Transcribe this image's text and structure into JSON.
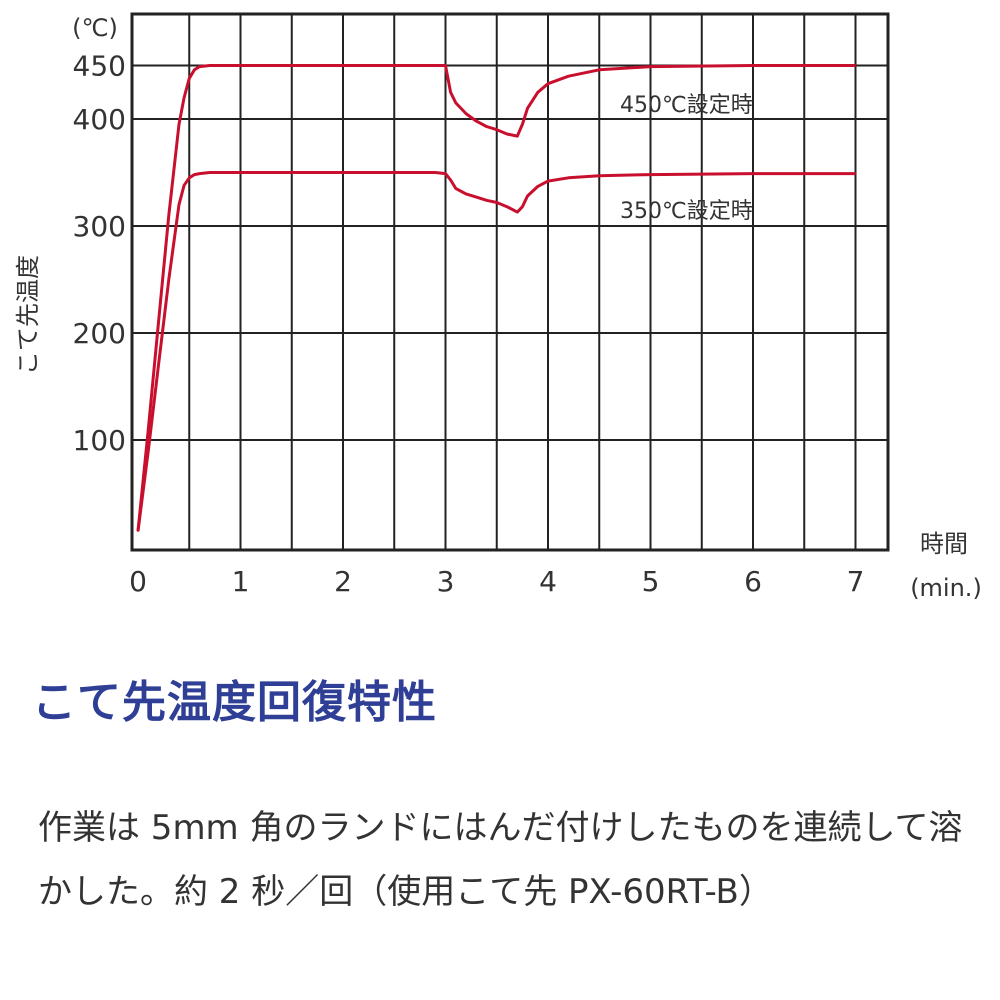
{
  "chart_data": {
    "type": "line",
    "y_unit": "(℃)",
    "ylabel": "こて先温度",
    "xlabel": "時間",
    "x_unit": "(min.)",
    "x_ticks": [
      "0",
      "1",
      "2",
      "3",
      "4",
      "5",
      "6",
      "7"
    ],
    "y_ticks": [
      "100",
      "200",
      "300",
      "400",
      "450"
    ],
    "xlim": [
      0,
      7.2
    ],
    "ylim": [
      0,
      465
    ],
    "grid": true,
    "line_color": "#c8102e",
    "series": [
      {
        "name": "450℃設定時",
        "x": [
          0,
          0.1,
          0.2,
          0.3,
          0.4,
          0.45,
          0.5,
          0.55,
          0.6,
          0.7,
          0.8,
          1.0,
          2.0,
          2.9,
          3.0,
          3.05,
          3.1,
          3.2,
          3.3,
          3.4,
          3.5,
          3.6,
          3.7,
          3.75,
          3.8,
          3.9,
          4.0,
          4.2,
          4.5,
          5.0,
          6.0,
          7.0
        ],
        "y": [
          15,
          110,
          210,
          310,
          395,
          420,
          438,
          446,
          449,
          450,
          450,
          450,
          450,
          450,
          450,
          425,
          415,
          405,
          398,
          393,
          390,
          386,
          384,
          395,
          410,
          425,
          433,
          440,
          446,
          449,
          450,
          450
        ]
      },
      {
        "name": "350℃設定時",
        "x": [
          0,
          0.1,
          0.2,
          0.3,
          0.4,
          0.45,
          0.5,
          0.55,
          0.6,
          0.7,
          1.0,
          2.0,
          2.9,
          3.0,
          3.05,
          3.1,
          3.2,
          3.3,
          3.4,
          3.5,
          3.6,
          3.7,
          3.75,
          3.8,
          3.9,
          4.0,
          4.2,
          4.5,
          5.0,
          6.0,
          7.0
        ],
        "y": [
          15,
          90,
          170,
          250,
          320,
          338,
          345,
          348,
          349,
          350,
          350,
          350,
          350,
          349,
          343,
          335,
          330,
          327,
          324,
          322,
          318,
          313,
          318,
          328,
          337,
          342,
          345,
          347,
          348,
          349,
          349
        ]
      }
    ]
  },
  "text": {
    "title": "こて先温度回復特性",
    "description": "作業は 5mm 角のランドにはんだ付けしたものを連続して溶かした。約 2 秒／回（使用こて先 PX-60RT-B）"
  }
}
